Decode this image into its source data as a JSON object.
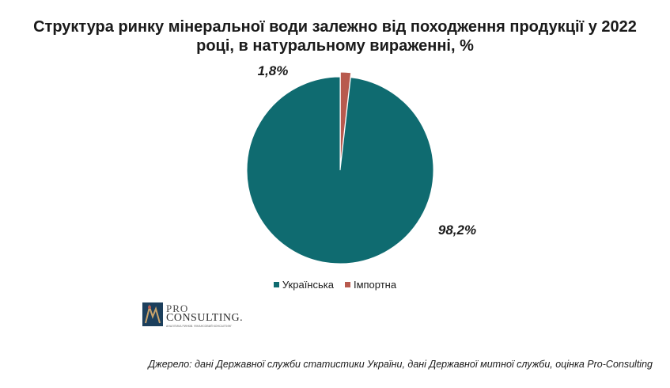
{
  "chart_data": {
    "type": "pie",
    "title_lines": [
      "Структура ринку мінеральної води залежно від походження продукції у 2022",
      "році, в натуральному вираженні, %"
    ],
    "slices": [
      {
        "name": "Українська",
        "value": 98.2,
        "label": "98,2%",
        "color": "#0f6b70"
      },
      {
        "name": "Імпортна",
        "value": 1.8,
        "label": "1,8%",
        "color": "#b85a4e"
      }
    ],
    "legend_position": "bottom"
  },
  "logo": {
    "line1": "PRO",
    "line2": "CONSULTING.",
    "tagline": "АНАЛІТИКА РИНКІВ. ФІНАНСОВИЙ КОНСАЛТИНГ"
  },
  "source": "Джерело: дані Державної служби статистики України, дані  Державної митної служби, оцінка Pro-Consulting"
}
